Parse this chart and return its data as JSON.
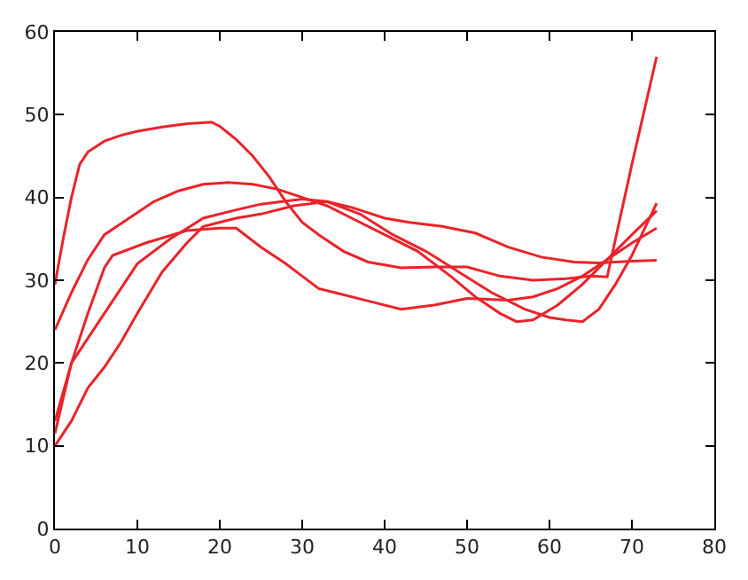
{
  "chart_data": {
    "type": "line",
    "xlim": [
      0,
      80
    ],
    "ylim": [
      0,
      60
    ],
    "xticks": [
      0,
      10,
      20,
      30,
      40,
      50,
      60,
      70,
      80
    ],
    "yticks": [
      0,
      10,
      20,
      30,
      40,
      50,
      60
    ],
    "marker": "none",
    "line_style": "solid",
    "series": [
      {
        "color": "#e8242a",
        "x": [
          0,
          1,
          2,
          3,
          4,
          6,
          8,
          10,
          13,
          16,
          19,
          20,
          22,
          24,
          26,
          28,
          30,
          32,
          35,
          38,
          42,
          46,
          50,
          54,
          58,
          62,
          65,
          67,
          70,
          73
        ],
        "values": [
          29.5,
          35,
          40,
          44,
          45.5,
          46.8,
          47.5,
          48,
          48.5,
          48.9,
          49.1,
          48.6,
          47,
          45,
          42.5,
          39.5,
          37,
          35.5,
          33.5,
          32.2,
          31.5,
          31.6,
          31.6,
          30.5,
          30,
          30.2,
          30.5,
          30.4,
          44,
          57
        ]
      },
      {
        "color": "#e8242a",
        "x": [
          0,
          2,
          4,
          6,
          9,
          12,
          15,
          18,
          21,
          24,
          27,
          30,
          33,
          36,
          40,
          44,
          48,
          51,
          54,
          56,
          58,
          61,
          64,
          67,
          70,
          73
        ],
        "values": [
          24,
          28.5,
          32.5,
          35.5,
          37.5,
          39.5,
          40.8,
          41.6,
          41.8,
          41.6,
          41,
          40,
          39,
          37.5,
          35.5,
          33.5,
          30.5,
          28,
          26,
          25,
          25.2,
          27,
          29.5,
          32.5,
          35.5,
          38.4
        ]
      },
      {
        "color": "#e8242a",
        "x": [
          0,
          2,
          4,
          6,
          7,
          11,
          16,
          20,
          22,
          25,
          28,
          30,
          32,
          34,
          38,
          42,
          46,
          50,
          55,
          58,
          61,
          64,
          67,
          70,
          73
        ],
        "values": [
          13,
          20,
          26,
          31.5,
          33,
          34.5,
          36,
          36.3,
          36.3,
          34,
          32,
          30.5,
          29,
          28.5,
          27.5,
          26.5,
          27,
          27.8,
          27.6,
          28,
          29,
          30.5,
          32.5,
          34.5,
          36.3
        ]
      },
      {
        "color": "#e8242a",
        "x": [
          0,
          2,
          5,
          8,
          10,
          14,
          18,
          22,
          25,
          30,
          33,
          36,
          40,
          43,
          47,
          51,
          55,
          59,
          63,
          66,
          70,
          73
        ],
        "values": [
          11.5,
          20,
          24.5,
          29,
          32,
          35,
          37.5,
          38.5,
          39.2,
          39.8,
          39.5,
          38.8,
          37.5,
          37,
          36.5,
          35.7,
          34,
          32.8,
          32.2,
          32.1,
          32.3,
          32.4
        ]
      },
      {
        "color": "#e8242a",
        "x": [
          0,
          2,
          4,
          6,
          8,
          10,
          13,
          16,
          18,
          22,
          25,
          29,
          33,
          37,
          41,
          45,
          49,
          53,
          57,
          60,
          62,
          64,
          66,
          68,
          70,
          73
        ],
        "values": [
          10,
          13,
          17,
          19.5,
          22.5,
          26,
          31,
          34.5,
          36.5,
          37.5,
          38,
          39,
          39.5,
          38,
          35.5,
          33.5,
          31,
          28.5,
          26.5,
          25.5,
          25.2,
          25,
          26.5,
          29.5,
          33,
          39.3
        ]
      }
    ]
  }
}
